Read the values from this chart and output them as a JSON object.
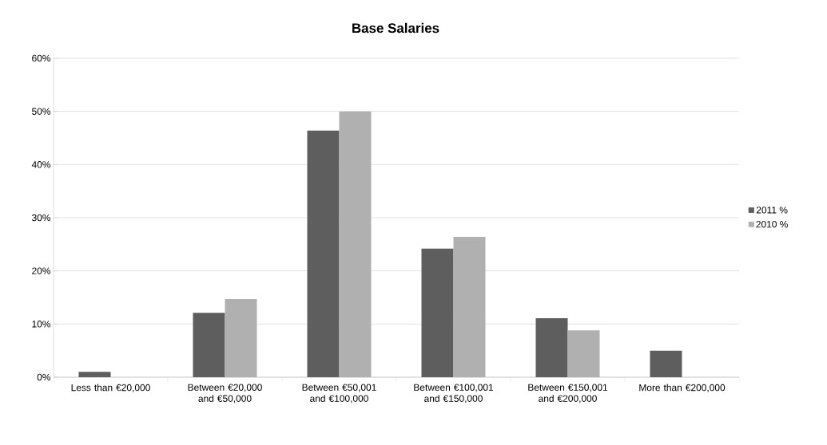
{
  "chart_data": {
    "type": "bar",
    "title": "Base Salaries",
    "categories": [
      "Less than €20,000",
      "Between €20,000 and €50,000",
      "Between €50,001 and €100,000",
      "Between €100,001 and €150,000",
      "Between €150,001 and €200,000",
      "More than €200,000"
    ],
    "series": [
      {
        "name": "2011 %",
        "color": "#5e5e5e",
        "values": [
          1.0,
          12.1,
          46.4,
          24.2,
          11.1,
          5.0
        ]
      },
      {
        "name": "2010 %",
        "color": "#b0b0b0",
        "values": [
          null,
          14.7,
          50.0,
          26.4,
          8.8,
          null
        ]
      }
    ],
    "ylim": [
      0,
      60
    ],
    "yticks": [
      {
        "value": 0,
        "label": "0%"
      },
      {
        "value": 10,
        "label": "10%"
      },
      {
        "value": 20,
        "label": "20%"
      },
      {
        "value": 30,
        "label": "30%"
      },
      {
        "value": 40,
        "label": "40%"
      },
      {
        "value": 50,
        "label": "50%"
      },
      {
        "value": 60,
        "label": "60%"
      }
    ],
    "grid": "y",
    "legend": "right"
  }
}
